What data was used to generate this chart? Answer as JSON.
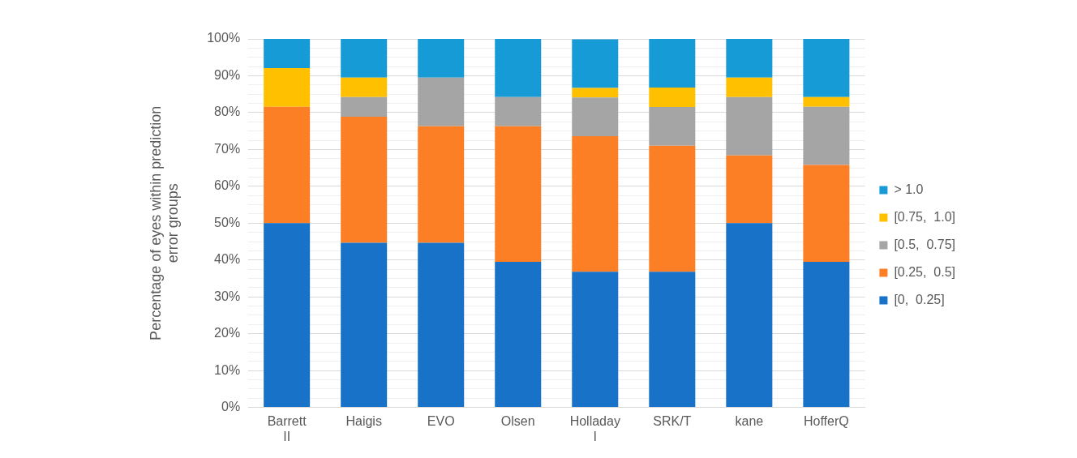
{
  "chart_data": {
    "type": "bar",
    "stacked": true,
    "ylabel": "Percentage of eyes within prediction error groups",
    "categories": [
      "Barrett II",
      "Haigis",
      "EVO",
      "Olsen",
      "Holladay I",
      "SRK/T",
      "kane",
      "HofferQ"
    ],
    "series": [
      {
        "name": "[0,  0.25]",
        "color": "#1772c8",
        "values": [
          50.0,
          44.7,
          44.7,
          39.5,
          36.8,
          36.8,
          50.0,
          39.5
        ]
      },
      {
        "name": "[0.25,  0.5]",
        "color": "#fd7f25",
        "values": [
          31.6,
          34.2,
          31.6,
          36.8,
          36.8,
          34.2,
          18.4,
          26.3
        ]
      },
      {
        "name": "[0.5,  0.75]",
        "color": "#a5a5a5",
        "values": [
          0,
          5.3,
          13.2,
          7.9,
          10.5,
          10.5,
          15.8,
          15.8
        ]
      },
      {
        "name": "[0.75,  1.0]",
        "color": "#ffc000",
        "values": [
          10.5,
          5.3,
          0,
          0,
          2.6,
          5.3,
          5.3,
          2.6
        ]
      },
      {
        "name": "> 1.0",
        "color": "#169bd6",
        "values": [
          7.9,
          10.5,
          10.5,
          15.8,
          13.2,
          13.2,
          10.5,
          15.8
        ]
      }
    ],
    "ylim": [
      0,
      100
    ],
    "yticks": [
      {
        "value": 0,
        "label": "0%"
      },
      {
        "value": 2.5,
        "label": null
      },
      {
        "value": 5,
        "label": null
      },
      {
        "value": 7.5,
        "label": null
      },
      {
        "value": 10,
        "label": "10%"
      },
      {
        "value": 12.5,
        "label": null
      },
      {
        "value": 15,
        "label": null
      },
      {
        "value": 17.5,
        "label": null
      },
      {
        "value": 20,
        "label": "20%"
      },
      {
        "value": 22.5,
        "label": null
      },
      {
        "value": 25,
        "label": null
      },
      {
        "value": 27.5,
        "label": null
      },
      {
        "value": 30,
        "label": "30%"
      },
      {
        "value": 32.5,
        "label": null
      },
      {
        "value": 35,
        "label": null
      },
      {
        "value": 37.5,
        "label": null
      },
      {
        "value": 40,
        "label": "40%"
      },
      {
        "value": 42.5,
        "label": null
      },
      {
        "value": 45,
        "label": null
      },
      {
        "value": 47.5,
        "label": null
      },
      {
        "value": 50,
        "label": "50%"
      },
      {
        "value": 52.5,
        "label": null
      },
      {
        "value": 55,
        "label": null
      },
      {
        "value": 57.5,
        "label": null
      },
      {
        "value": 60,
        "label": "60%"
      },
      {
        "value": 62.5,
        "label": null
      },
      {
        "value": 65,
        "label": null
      },
      {
        "value": 67.5,
        "label": null
      },
      {
        "value": 70,
        "label": "70%"
      },
      {
        "value": 72.5,
        "label": null
      },
      {
        "value": 75,
        "label": null
      },
      {
        "value": 77.5,
        "label": null
      },
      {
        "value": 80,
        "label": "80%"
      },
      {
        "value": 82.5,
        "label": null
      },
      {
        "value": 85,
        "label": null
      },
      {
        "value": 87.5,
        "label": null
      },
      {
        "value": 90,
        "label": "90%"
      },
      {
        "value": 92.5,
        "label": null
      },
      {
        "value": 95,
        "label": null
      },
      {
        "value": 97.5,
        "label": null
      },
      {
        "value": 100,
        "label": "100%"
      }
    ],
    "grid": "y",
    "legend": "right"
  }
}
